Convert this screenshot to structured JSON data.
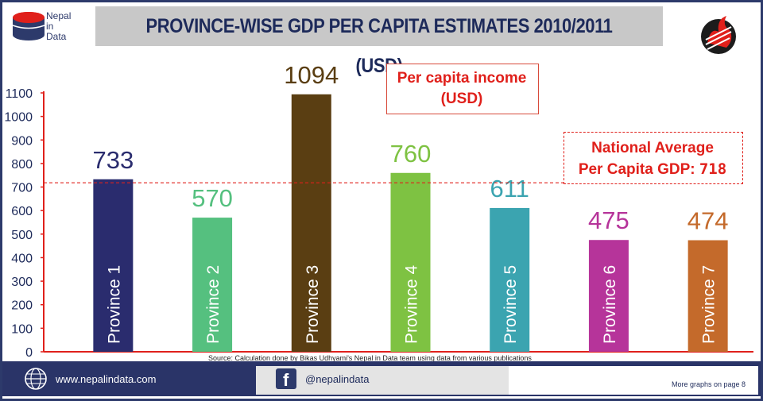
{
  "brand": {
    "line1": "Nepal",
    "line2": "in",
    "line3": "Data"
  },
  "title": "PROVINCE-WISE GDP PER CAPITA ESTIMATES 2010/2011 (USD)",
  "legend": {
    "line1": "Per capita income",
    "line2": "(USD)"
  },
  "national_average": {
    "line1": "National Average",
    "line2_prefix": "Per Capita GDP: ",
    "value_label": "718"
  },
  "source": "Source: Calculation done by Bikas Udhyami's Nepal in Data team using data from various publications",
  "footer": {
    "website": "www.nepalindata.com",
    "social": "@nepalindata",
    "more": "More graphs on page 8"
  },
  "colors": {
    "navy": "#2a3468",
    "red": "#e0201b"
  },
  "icons": {
    "globe": "globe-icon",
    "facebook": "facebook-icon"
  },
  "chart_data": {
    "type": "bar",
    "categories": [
      "Province 1",
      "Province 2",
      "Province 3",
      "Province 4",
      "Province 5",
      "Province 6",
      "Province 7"
    ],
    "values": [
      733,
      570,
      1094,
      760,
      611,
      475,
      474
    ],
    "bar_colors": [
      "#2a2c6e",
      "#55c07f",
      "#5a3e12",
      "#7ec242",
      "#3ba4b0",
      "#b6349a",
      "#c46a2b"
    ],
    "label_colors": [
      "#2a2c6e",
      "#55c07f",
      "#5a3e12",
      "#7ec242",
      "#3ba4b0",
      "#b6349a",
      "#c46a2b"
    ],
    "ylim": [
      0,
      1100
    ],
    "yticks": [
      0,
      100,
      200,
      300,
      400,
      500,
      600,
      700,
      800,
      900,
      1000,
      1100
    ],
    "reference_line": {
      "value": 718,
      "style": "dashed",
      "color": "#e0201b"
    },
    "grid": false
  }
}
